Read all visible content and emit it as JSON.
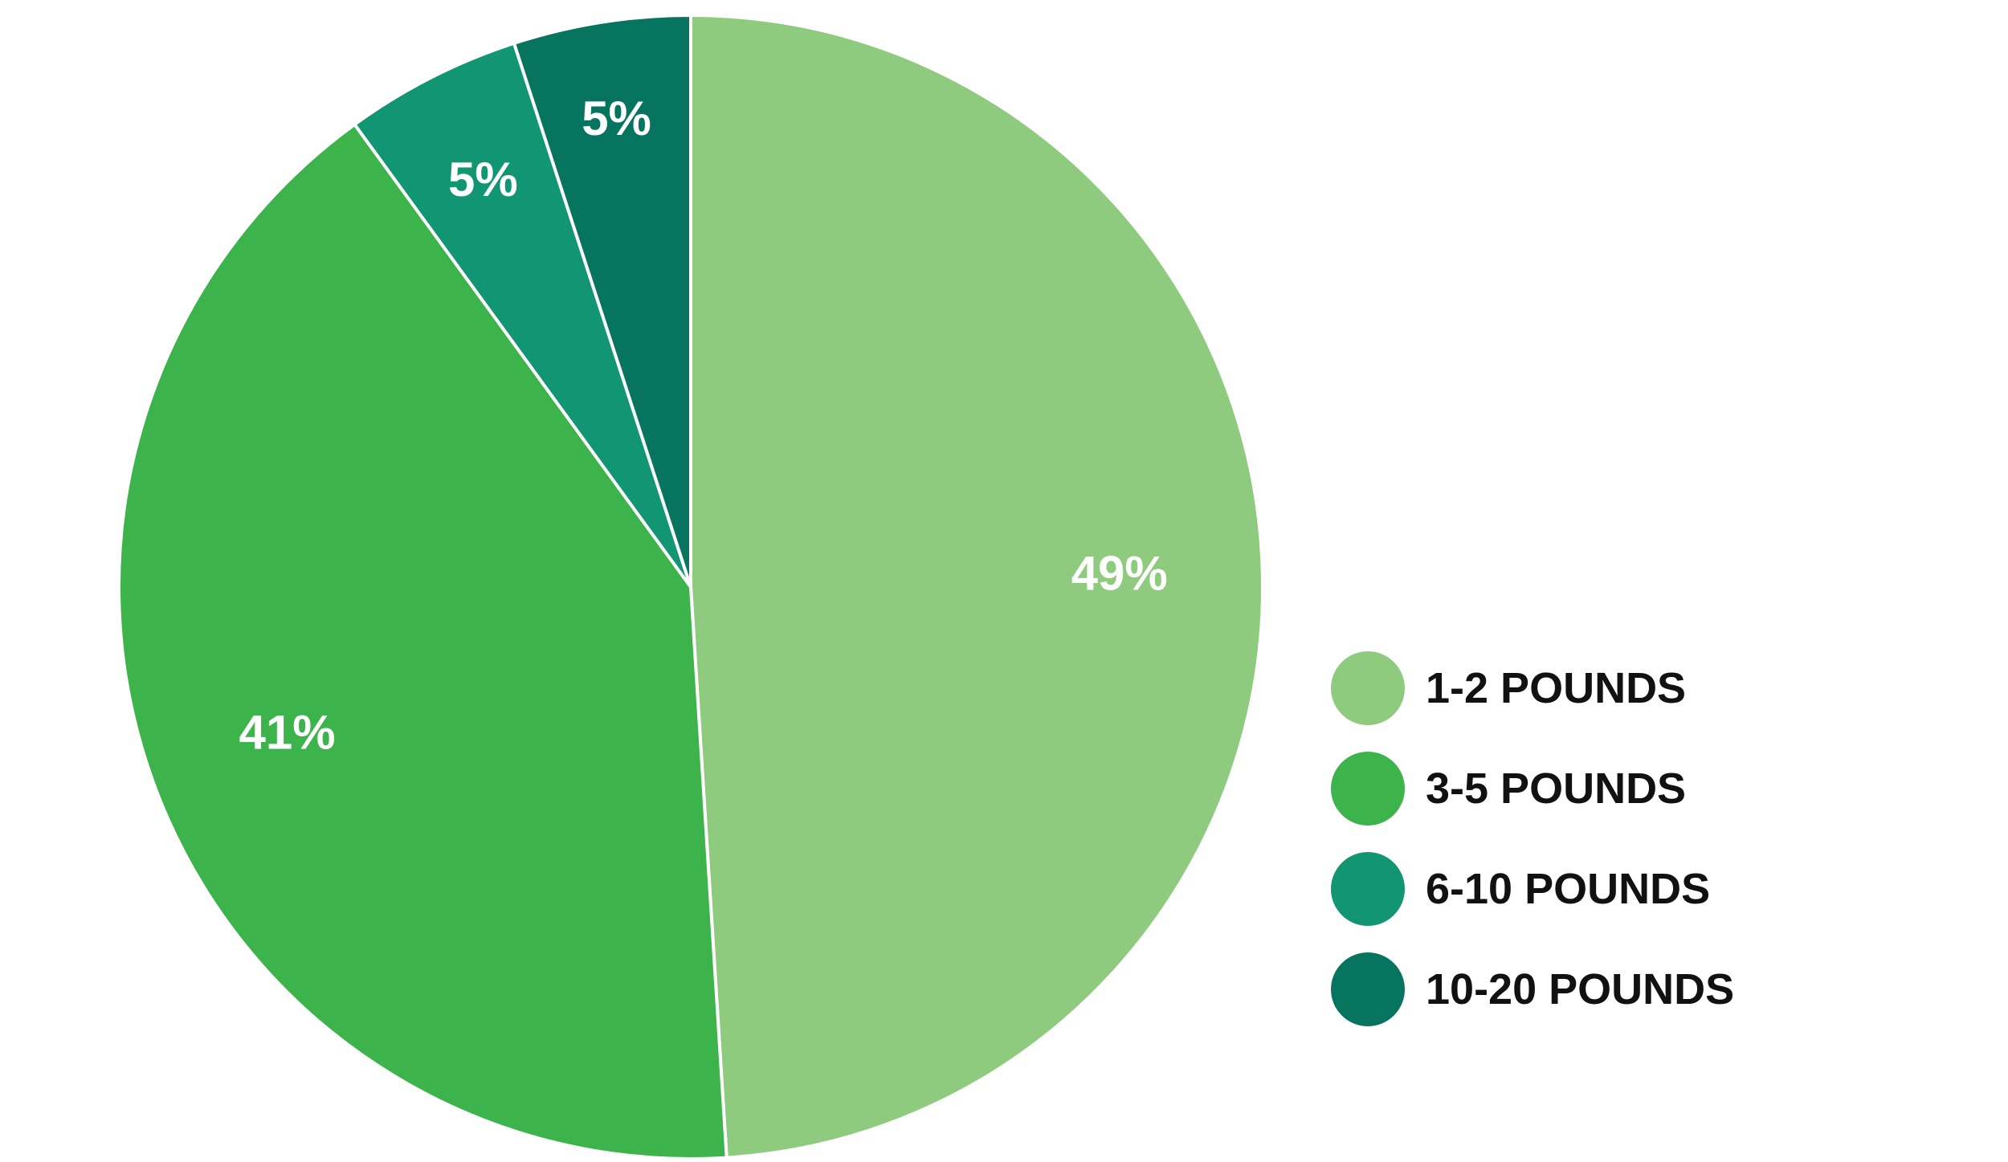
{
  "chart_data": {
    "type": "pie",
    "title": "",
    "legend_position": "right",
    "slices": [
      {
        "label": "1-2 POUNDS",
        "value": 49,
        "value_label": "49%",
        "color": "#8fcb7f"
      },
      {
        "label": "3-5 POUNDS",
        "value": 41,
        "value_label": "41%",
        "color": "#3cb44b"
      },
      {
        "label": "6-10 POUNDS",
        "value": 5,
        "value_label": "5%",
        "color": "#129573"
      },
      {
        "label": "10-20 POUNDS",
        "value": 5,
        "value_label": "5%",
        "color": "#077460"
      }
    ],
    "slice_border_color": "#ffffff"
  }
}
